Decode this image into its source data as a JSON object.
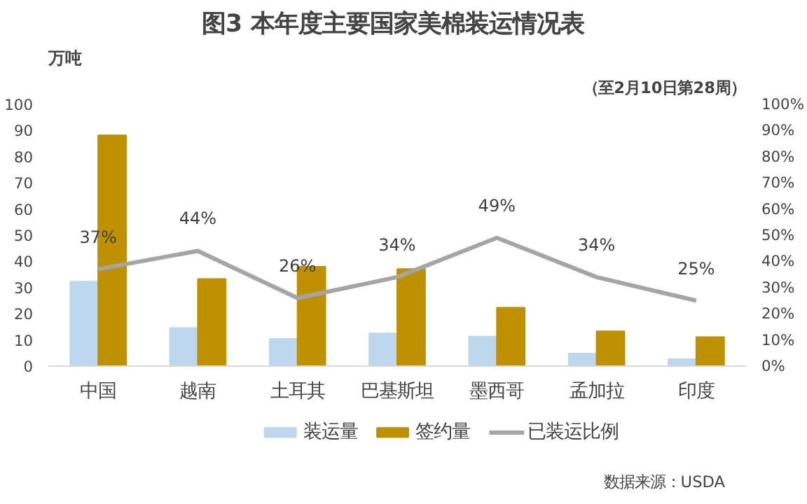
{
  "chart_data": {
    "type": "bar",
    "title": "图3  本年度主要国家美棉装运情况表",
    "subtitle": "（至2月10日第28周）",
    "ylabel": "万吨",
    "categories": [
      "中国",
      "越南",
      "土耳其",
      "巴基斯坦",
      "墨西哥",
      "孟加拉",
      "印度"
    ],
    "series": [
      {
        "name": "装运量",
        "color": "#bdd7ee",
        "values": [
          32.3,
          14.6,
          10.4,
          12.5,
          11.3,
          4.8,
          2.7
        ]
      },
      {
        "name": "签约量",
        "color": "#bf9000",
        "values": [
          88.2,
          33.3,
          38.0,
          37.1,
          22.3,
          13.3,
          11.1
        ]
      },
      {
        "name": "已装运比例",
        "type": "line",
        "axis": "y2",
        "color": "#a5a5a5",
        "values": [
          37,
          44,
          26,
          34,
          49,
          34,
          25
        ],
        "value_labels": [
          "37%",
          "44%",
          "26%",
          "34%",
          "49%",
          "34%",
          "25%"
        ]
      }
    ],
    "ylim": [
      0,
      100
    ],
    "yticks": [
      0,
      10,
      20,
      30,
      40,
      50,
      60,
      70,
      80,
      90,
      100
    ],
    "y2lim": [
      0,
      100
    ],
    "y2ticks": [
      {
        "value": 0,
        "label": "0%"
      },
      {
        "value": 10,
        "label": "10%"
      },
      {
        "value": 20,
        "label": "20%"
      },
      {
        "value": 30,
        "label": "30%"
      },
      {
        "value": 40,
        "label": "40%"
      },
      {
        "value": 50,
        "label": "50%"
      },
      {
        "value": 60,
        "label": "60%"
      },
      {
        "value": 70,
        "label": "70%"
      },
      {
        "value": 80,
        "label": "80%"
      },
      {
        "value": 90,
        "label": "90%"
      },
      {
        "value": 100,
        "label": "100%"
      }
    ],
    "grid": false,
    "legend": "bottom",
    "annotations": [
      "数据来源：USDA"
    ]
  }
}
